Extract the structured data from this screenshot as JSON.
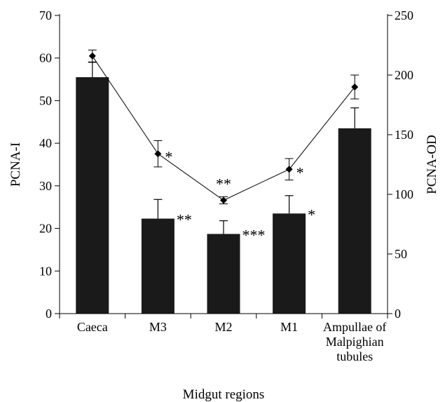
{
  "chart_data": {
    "type": "bar",
    "xlabel": "Midgut regions",
    "ylabel_left": "PCNA-I",
    "ylabel_right": "PCNA-OD",
    "categories": [
      [
        "Caeca"
      ],
      [
        "M3"
      ],
      [
        "M2"
      ],
      [
        "M1"
      ],
      [
        "Ampullae of",
        "Malpighian",
        "tubules"
      ]
    ],
    "left_axis": {
      "min": 0,
      "max": 70,
      "ticks": [
        0,
        10,
        20,
        30,
        40,
        50,
        60,
        70
      ]
    },
    "right_axis": {
      "min": 0,
      "max": 250,
      "ticks": [
        0,
        50,
        100,
        150,
        200,
        250
      ]
    },
    "series": [
      {
        "kind": "bar",
        "axis": "left",
        "values": [
          55.5,
          22.3,
          18.7,
          23.5,
          43.5
        ],
        "error_upper": [
          3.5,
          4.5,
          3.1,
          4.2,
          4.8
        ],
        "color": "#1a1a1a"
      },
      {
        "kind": "line",
        "axis": "right",
        "marker": "diamond",
        "values": [
          216,
          134,
          95,
          121,
          190
        ],
        "error": [
          5,
          11,
          3,
          9,
          10
        ],
        "color": "#000000"
      }
    ],
    "bar_significance": [
      "",
      "**",
      "***",
      "*",
      ""
    ],
    "line_significance": [
      "",
      "*",
      "**",
      "*",
      ""
    ],
    "grid": false,
    "legend": "none"
  }
}
